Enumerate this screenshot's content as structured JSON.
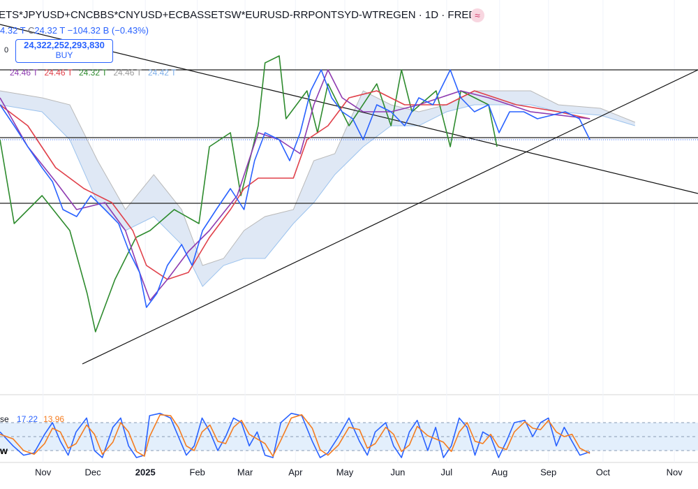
{
  "header": {
    "symbol": "ETS*JPYUSD+CNCBBS*CNYUSD+ECBASSETSW*EURUSD-RRPONTSYD-WTREGEN · 1D · FRED",
    "badge": "≈",
    "open": "4.32 T",
    "close_label": "C",
    "close": "24.32 T",
    "change": "−104.32 B (−0.43%)",
    "qty": "0",
    "price": "24,322,252,293,830",
    "action": "BUY"
  },
  "indicators": {
    "values": [
      "24.46 T",
      "24.46 T",
      "24.32 T",
      "24.46 T",
      "24.42 T"
    ],
    "colors": [
      "#8e3bb0",
      "#e0404a",
      "#2e8b2e",
      "#9a9a9a",
      "#7fb0ea"
    ],
    "stoch_name": "se",
    "stoch_k": "17.22",
    "stoch_d": "13.96",
    "stoch_colors": [
      "#2962ff",
      "#f57c1f"
    ],
    "pane_label": "w"
  },
  "chart_data": [
    {
      "type": "line",
      "xlim": [
        -0.85,
        12.45
      ],
      "ylim": [
        22.88,
        25.08
      ],
      "grid": true,
      "xticks": [
        {
          "value": -0.03,
          "label": "Nov"
        },
        {
          "value": 0.92,
          "label": "Dec"
        },
        {
          "value": 1.92,
          "label": "2025"
        },
        {
          "value": 2.91,
          "label": "Feb"
        },
        {
          "value": 3.82,
          "label": "Mar"
        },
        {
          "value": 4.78,
          "label": "Apr"
        },
        {
          "value": 5.72,
          "label": "May"
        },
        {
          "value": 6.73,
          "label": "Jun"
        },
        {
          "value": 7.66,
          "label": "Jul"
        },
        {
          "value": 8.67,
          "label": "Aug"
        },
        {
          "value": 9.6,
          "label": "Sep"
        },
        {
          "value": 10.64,
          "label": "Oct"
        },
        {
          "value": 12.0,
          "label": "Nov"
        }
      ],
      "cloud": {
        "color": "#dfe8f5",
        "x": [
          -0.85,
          -0.05,
          0.48,
          1.01,
          1.54,
          2.08,
          2.61,
          3.01,
          3.41,
          3.8,
          4.2,
          4.74,
          5.13,
          5.53,
          6.07,
          6.6,
          7.13,
          7.66,
          8.19,
          8.73,
          9.26,
          9.79,
          10.59,
          11.25
        ],
        "upper": [
          24.6,
          24.56,
          24.52,
          24.2,
          23.92,
          24.12,
          23.92,
          23.6,
          23.64,
          23.8,
          23.88,
          23.92,
          24.2,
          24.24,
          24.6,
          24.52,
          24.48,
          24.52,
          24.6,
          24.6,
          24.6,
          24.52,
          24.5,
          24.42
        ],
        "lower": [
          24.52,
          24.48,
          24.32,
          23.96,
          23.8,
          23.88,
          23.72,
          23.48,
          23.6,
          23.64,
          23.64,
          23.84,
          23.96,
          24.12,
          24.28,
          24.4,
          24.4,
          24.48,
          24.52,
          24.52,
          24.52,
          24.48,
          24.46,
          24.4
        ]
      },
      "series": [
        {
          "color": "#2e8b2e",
          "x": [
            -0.85,
            -0.58,
            -0.05,
            0.48,
            0.81,
            0.97,
            1.34,
            1.74,
            2.01,
            2.47,
            2.94,
            3.14,
            3.54,
            3.74,
            4.07,
            4.2,
            4.47,
            4.6,
            5.0,
            5.2,
            5.4,
            5.8,
            6.33,
            6.6,
            6.8,
            7.0,
            7.46,
            7.73,
            7.93,
            8.46,
            8.62
          ],
          "values": [
            24.32,
            23.84,
            24.0,
            23.8,
            23.44,
            23.22,
            23.52,
            23.76,
            23.8,
            23.92,
            23.84,
            24.28,
            24.36,
            24.0,
            24.4,
            24.76,
            24.8,
            24.44,
            24.6,
            24.36,
            24.64,
            24.4,
            24.64,
            24.4,
            24.72,
            24.48,
            24.6,
            24.28,
            24.6,
            24.52,
            24.28
          ]
        },
        {
          "color": "#e0404a",
          "x": [
            -0.85,
            -0.32,
            0.21,
            0.75,
            1.28,
            1.68,
            1.94,
            2.34,
            2.74,
            3.14,
            3.54,
            3.8,
            4.07,
            4.74,
            5.0,
            5.4,
            5.8,
            6.33,
            6.86,
            7.66,
            8.19,
            8.99,
            9.79,
            10.39
          ],
          "values": [
            24.52,
            24.4,
            24.16,
            24.04,
            23.96,
            23.8,
            23.6,
            23.52,
            23.56,
            23.76,
            23.92,
            24.04,
            24.1,
            24.1,
            24.32,
            24.4,
            24.56,
            24.6,
            24.52,
            24.52,
            24.6,
            24.52,
            24.48,
            24.44
          ]
        },
        {
          "color": "#8e3bb0",
          "x": [
            -0.85,
            -0.32,
            0.21,
            0.61,
            1.15,
            1.54,
            1.81,
            2.01,
            2.34,
            2.74,
            3.14,
            3.67,
            4.07,
            4.47,
            4.87,
            5.13,
            5.4,
            5.67,
            6.07,
            6.6,
            7.13,
            7.93,
            8.46,
            9.26,
            10.39
          ],
          "values": [
            24.56,
            24.28,
            24.08,
            23.92,
            23.96,
            23.8,
            23.56,
            23.4,
            23.52,
            23.68,
            23.8,
            24.0,
            24.36,
            24.32,
            24.24,
            24.52,
            24.72,
            24.56,
            24.48,
            24.48,
            24.52,
            24.6,
            24.56,
            24.48,
            24.44
          ]
        },
        {
          "color": "#2962ff",
          "x": [
            -0.85,
            -0.58,
            -0.32,
            -0.05,
            0.15,
            0.35,
            0.61,
            0.88,
            1.15,
            1.41,
            1.61,
            1.81,
            1.94,
            2.14,
            2.34,
            2.61,
            2.81,
            3.01,
            3.27,
            3.54,
            3.8,
            4.0,
            4.2,
            4.47,
            4.67,
            4.87,
            5.07,
            5.27,
            5.47,
            5.67,
            5.87,
            6.07,
            6.33,
            6.6,
            6.86,
            7.13,
            7.4,
            7.73,
            7.93,
            8.19,
            8.46,
            8.66,
            8.86,
            9.13,
            9.39,
            9.66,
            9.92,
            10.19,
            10.39
          ],
          "values": [
            24.52,
            24.4,
            24.28,
            24.16,
            24.08,
            23.92,
            23.88,
            24.0,
            23.92,
            23.84,
            23.68,
            23.56,
            23.36,
            23.44,
            23.6,
            23.72,
            23.6,
            23.8,
            23.92,
            24.04,
            23.92,
            24.2,
            24.36,
            24.32,
            24.2,
            24.36,
            24.6,
            24.72,
            24.56,
            24.48,
            24.44,
            24.32,
            24.52,
            24.48,
            24.4,
            24.56,
            24.52,
            24.72,
            24.56,
            24.48,
            24.52,
            24.36,
            24.48,
            24.48,
            24.44,
            24.46,
            24.48,
            24.44,
            24.32
          ]
        }
      ],
      "hlines": [
        24.72,
        24.332,
        23.956
      ],
      "hline_color": "#222222",
      "price_line": 24.32,
      "trendlines": [
        {
          "x": [
            -0.85,
            12.45
          ],
          "values": [
            24.98,
            24.012
          ]
        },
        {
          "x": [
            0.72,
            12.45
          ],
          "values": [
            23.036,
            24.72
          ]
        }
      ]
    },
    {
      "type": "line",
      "xlim": [
        -0.85,
        12.45
      ],
      "ylim": [
        0,
        100
      ],
      "bands": [
        80,
        50,
        20
      ],
      "band_color": "#e3effc",
      "series": [
        {
          "color": "#2962ff",
          "x": [
            -0.85,
            -0.6,
            -0.4,
            -0.2,
            0,
            0.15,
            0.3,
            0.45,
            0.6,
            0.8,
            0.95,
            1.1,
            1.3,
            1.45,
            1.6,
            1.75,
            1.9,
            2.0,
            2.2,
            2.4,
            2.55,
            2.7,
            2.85,
            3.0,
            3.15,
            3.3,
            3.45,
            3.6,
            3.75,
            3.9,
            4.05,
            4.2,
            4.35,
            4.5,
            4.7,
            4.9,
            5.1,
            5.25,
            5.4,
            5.6,
            5.8,
            6.0,
            6.15,
            6.3,
            6.5,
            6.65,
            6.8,
            6.95,
            7.1,
            7.3,
            7.45,
            7.6,
            7.75,
            7.9,
            8.05,
            8.2,
            8.35,
            8.5,
            8.65,
            8.8,
            8.95,
            9.15,
            9.3,
            9.45,
            9.6,
            9.75,
            9.9,
            10.05,
            10.2,
            10.39
          ],
          "values": [
            60,
            30,
            10,
            15,
            55,
            80,
            40,
            10,
            60,
            90,
            20,
            5,
            70,
            90,
            30,
            5,
            10,
            95,
            100,
            90,
            50,
            10,
            30,
            90,
            60,
            20,
            50,
            90,
            80,
            30,
            60,
            10,
            5,
            80,
            100,
            95,
            40,
            5,
            15,
            50,
            90,
            40,
            10,
            60,
            80,
            30,
            5,
            60,
            85,
            20,
            70,
            5,
            30,
            90,
            70,
            10,
            60,
            50,
            5,
            40,
            80,
            85,
            50,
            80,
            90,
            30,
            70,
            40,
            10,
            17.22
          ]
        },
        {
          "color": "#f57c1f",
          "x": [
            -0.85,
            -0.6,
            -0.4,
            -0.2,
            0,
            0.15,
            0.3,
            0.45,
            0.6,
            0.8,
            0.95,
            1.1,
            1.3,
            1.45,
            1.6,
            1.75,
            1.9,
            2.0,
            2.2,
            2.4,
            2.55,
            2.7,
            2.85,
            3.0,
            3.15,
            3.3,
            3.45,
            3.6,
            3.75,
            3.9,
            4.05,
            4.2,
            4.35,
            4.5,
            4.7,
            4.9,
            5.1,
            5.25,
            5.4,
            5.6,
            5.8,
            6.0,
            6.15,
            6.3,
            6.5,
            6.65,
            6.8,
            6.95,
            7.1,
            7.3,
            7.45,
            7.6,
            7.75,
            7.9,
            8.05,
            8.2,
            8.35,
            8.5,
            8.65,
            8.8,
            8.95,
            9.15,
            9.3,
            9.45,
            9.6,
            9.75,
            9.9,
            10.05,
            10.2,
            10.39
          ],
          "values": [
            55,
            45,
            20,
            12,
            35,
            68,
            60,
            25,
            35,
            75,
            55,
            12,
            38,
            80,
            60,
            18,
            8,
            50,
            97,
            95,
            70,
            30,
            20,
            60,
            75,
            40,
            35,
            70,
            85,
            55,
            45,
            35,
            8,
            42,
            90,
            97,
            68,
            22,
            10,
            32,
            70,
            65,
            25,
            35,
            70,
            55,
            18,
            32,
            72,
            52,
            45,
            38,
            18,
            60,
            80,
            40,
            35,
            55,
            28,
            22,
            60,
            82,
            68,
            65,
            85,
            60,
            50,
            55,
            25,
            13.96
          ]
        }
      ]
    }
  ]
}
